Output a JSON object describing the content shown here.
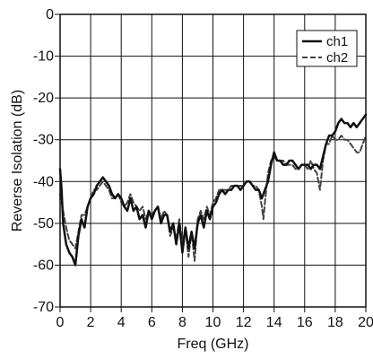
{
  "chart_data": {
    "type": "line",
    "title": "",
    "xlabel": "Freq (GHz)",
    "ylabel": "Reverse Isolation (dB)",
    "xlim": [
      0,
      20
    ],
    "ylim": [
      -70,
      0
    ],
    "xticks": [
      0,
      2,
      4,
      6,
      8,
      10,
      12,
      14,
      16,
      18,
      20
    ],
    "yticks": [
      0,
      -10,
      -20,
      -30,
      -40,
      -50,
      -60,
      -70
    ],
    "grid": true,
    "legend": "top-right",
    "series": [
      {
        "name": "ch1",
        "color": "#111111",
        "dash": "solid",
        "points": [
          [
            0.0,
            -37
          ],
          [
            0.1,
            -42
          ],
          [
            0.2,
            -50
          ],
          [
            0.4,
            -55
          ],
          [
            0.6,
            -57
          ],
          [
            0.8,
            -58
          ],
          [
            1.0,
            -60
          ],
          [
            1.2,
            -53
          ],
          [
            1.4,
            -49
          ],
          [
            1.6,
            -51
          ],
          [
            1.8,
            -46
          ],
          [
            2.0,
            -44
          ],
          [
            2.2,
            -43
          ],
          [
            2.4,
            -41
          ],
          [
            2.6,
            -40
          ],
          [
            2.8,
            -39
          ],
          [
            3.0,
            -40
          ],
          [
            3.2,
            -41
          ],
          [
            3.4,
            -43
          ],
          [
            3.6,
            -44
          ],
          [
            3.8,
            -43
          ],
          [
            4.0,
            -44
          ],
          [
            4.2,
            -46
          ],
          [
            4.4,
            -47
          ],
          [
            4.6,
            -44
          ],
          [
            4.8,
            -47
          ],
          [
            5.0,
            -46
          ],
          [
            5.2,
            -49
          ],
          [
            5.4,
            -48
          ],
          [
            5.6,
            -51
          ],
          [
            5.8,
            -47
          ],
          [
            6.0,
            -49
          ],
          [
            6.2,
            -47
          ],
          [
            6.4,
            -46
          ],
          [
            6.6,
            -50
          ],
          [
            6.8,
            -48
          ],
          [
            7.0,
            -48
          ],
          [
            7.2,
            -52
          ],
          [
            7.4,
            -50
          ],
          [
            7.6,
            -55
          ],
          [
            7.8,
            -50
          ],
          [
            8.0,
            -57
          ],
          [
            8.2,
            -51
          ],
          [
            8.4,
            -56
          ],
          [
            8.6,
            -52
          ],
          [
            8.8,
            -56
          ],
          [
            9.0,
            -50
          ],
          [
            9.2,
            -48
          ],
          [
            9.4,
            -51
          ],
          [
            9.6,
            -47
          ],
          [
            9.8,
            -49
          ],
          [
            10.0,
            -46
          ],
          [
            10.2,
            -45
          ],
          [
            10.4,
            -43
          ],
          [
            10.6,
            -42
          ],
          [
            10.8,
            -43
          ],
          [
            11.0,
            -42
          ],
          [
            11.2,
            -42
          ],
          [
            11.4,
            -41
          ],
          [
            11.6,
            -41
          ],
          [
            11.8,
            -42
          ],
          [
            12.0,
            -41
          ],
          [
            12.2,
            -40
          ],
          [
            12.4,
            -40
          ],
          [
            12.6,
            -41
          ],
          [
            12.8,
            -42
          ],
          [
            13.0,
            -42
          ],
          [
            13.2,
            -44
          ],
          [
            13.4,
            -42
          ],
          [
            13.6,
            -40
          ],
          [
            13.8,
            -36
          ],
          [
            14.0,
            -33
          ],
          [
            14.2,
            -35
          ],
          [
            14.4,
            -35
          ],
          [
            14.6,
            -36
          ],
          [
            14.8,
            -36
          ],
          [
            15.0,
            -35
          ],
          [
            15.2,
            -35
          ],
          [
            15.4,
            -36
          ],
          [
            15.6,
            -37
          ],
          [
            15.8,
            -36
          ],
          [
            16.0,
            -36
          ],
          [
            16.2,
            -36
          ],
          [
            16.4,
            -37
          ],
          [
            16.6,
            -36
          ],
          [
            16.8,
            -36
          ],
          [
            17.0,
            -37
          ],
          [
            17.2,
            -34
          ],
          [
            17.4,
            -31
          ],
          [
            17.6,
            -29
          ],
          [
            17.8,
            -29
          ],
          [
            18.0,
            -28
          ],
          [
            18.2,
            -26
          ],
          [
            18.4,
            -25
          ],
          [
            18.6,
            -26
          ],
          [
            18.8,
            -26
          ],
          [
            19.0,
            -27
          ],
          [
            19.2,
            -26
          ],
          [
            19.4,
            -27
          ],
          [
            19.6,
            -26
          ],
          [
            19.8,
            -25
          ],
          [
            20.0,
            -24
          ]
        ]
      },
      {
        "name": "ch2",
        "color": "#444444",
        "dash": "dashed",
        "points": [
          [
            0.0,
            -43
          ],
          [
            0.2,
            -47
          ],
          [
            0.4,
            -51
          ],
          [
            0.6,
            -54
          ],
          [
            0.8,
            -55
          ],
          [
            1.0,
            -56
          ],
          [
            1.2,
            -52
          ],
          [
            1.4,
            -48
          ],
          [
            1.6,
            -48
          ],
          [
            1.8,
            -46
          ],
          [
            2.0,
            -44
          ],
          [
            2.2,
            -42
          ],
          [
            2.4,
            -42
          ],
          [
            2.6,
            -41
          ],
          [
            2.8,
            -40
          ],
          [
            3.0,
            -41
          ],
          [
            3.2,
            -42
          ],
          [
            3.4,
            -44
          ],
          [
            3.6,
            -44
          ],
          [
            3.8,
            -43
          ],
          [
            4.0,
            -45
          ],
          [
            4.2,
            -46
          ],
          [
            4.4,
            -45
          ],
          [
            4.6,
            -43
          ],
          [
            4.8,
            -45
          ],
          [
            5.0,
            -46
          ],
          [
            5.2,
            -47
          ],
          [
            5.4,
            -46
          ],
          [
            5.6,
            -49
          ],
          [
            5.8,
            -47
          ],
          [
            6.0,
            -48
          ],
          [
            6.2,
            -47
          ],
          [
            6.4,
            -46
          ],
          [
            6.6,
            -49
          ],
          [
            6.8,
            -47
          ],
          [
            7.0,
            -48
          ],
          [
            7.2,
            -53
          ],
          [
            7.4,
            -51
          ],
          [
            7.6,
            -54
          ],
          [
            7.8,
            -49
          ],
          [
            8.0,
            -55
          ],
          [
            8.2,
            -51
          ],
          [
            8.4,
            -58
          ],
          [
            8.6,
            -52
          ],
          [
            8.8,
            -59
          ],
          [
            9.0,
            -49
          ],
          [
            9.2,
            -47
          ],
          [
            9.4,
            -49
          ],
          [
            9.6,
            -46
          ],
          [
            9.8,
            -48
          ],
          [
            10.0,
            -45
          ],
          [
            10.2,
            -44
          ],
          [
            10.4,
            -42
          ],
          [
            10.6,
            -42
          ],
          [
            10.8,
            -42
          ],
          [
            11.0,
            -42
          ],
          [
            11.2,
            -41
          ],
          [
            11.4,
            -41
          ],
          [
            11.6,
            -41
          ],
          [
            11.8,
            -41
          ],
          [
            12.0,
            -41
          ],
          [
            12.2,
            -40
          ],
          [
            12.4,
            -40
          ],
          [
            12.6,
            -41
          ],
          [
            12.8,
            -41
          ],
          [
            13.0,
            -42
          ],
          [
            13.2,
            -46
          ],
          [
            13.3,
            -49
          ],
          [
            13.4,
            -45
          ],
          [
            13.6,
            -38
          ],
          [
            13.8,
            -35
          ],
          [
            14.0,
            -34
          ],
          [
            14.2,
            -35
          ],
          [
            14.4,
            -35
          ],
          [
            14.6,
            -35
          ],
          [
            14.8,
            -36
          ],
          [
            15.0,
            -36
          ],
          [
            15.2,
            -36
          ],
          [
            15.4,
            -37
          ],
          [
            15.6,
            -37
          ],
          [
            15.8,
            -36
          ],
          [
            16.0,
            -36
          ],
          [
            16.2,
            -37
          ],
          [
            16.4,
            -35
          ],
          [
            16.6,
            -37
          ],
          [
            16.8,
            -38
          ],
          [
            17.0,
            -42
          ],
          [
            17.2,
            -35
          ],
          [
            17.4,
            -31
          ],
          [
            17.6,
            -31
          ],
          [
            17.8,
            -29
          ],
          [
            18.0,
            -30
          ],
          [
            18.2,
            -30
          ],
          [
            18.4,
            -29
          ],
          [
            18.6,
            -30
          ],
          [
            18.8,
            -30
          ],
          [
            19.0,
            -31
          ],
          [
            19.2,
            -32
          ],
          [
            19.4,
            -33
          ],
          [
            19.6,
            -33
          ],
          [
            19.8,
            -31
          ],
          [
            20.0,
            -29
          ]
        ]
      }
    ]
  }
}
